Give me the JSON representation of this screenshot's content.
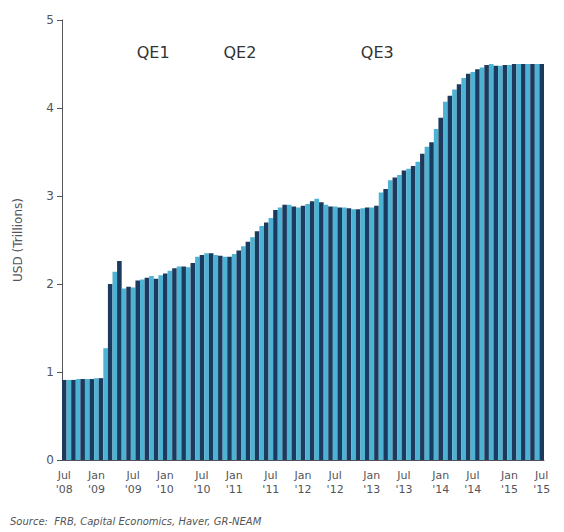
{
  "chart_data": {
    "type": "bar",
    "ylabel": "USD (Trillions)",
    "annotations": [
      "QE1",
      "QE2",
      "QE3"
    ],
    "source": "Source:  FRB, Capital Economics, Haver, GR-NEAM",
    "ylim": [
      0,
      5
    ],
    "yticks": [
      0,
      1,
      2,
      3,
      4,
      5
    ],
    "grid": false,
    "categories": [
      "Jul\n'08",
      null,
      null,
      null,
      null,
      null,
      null,
      "Jan\n'09",
      null,
      null,
      null,
      null,
      null,
      null,
      null,
      "Jul\n'09",
      null,
      null,
      null,
      null,
      null,
      null,
      "Jan\n'10",
      null,
      null,
      null,
      null,
      null,
      null,
      null,
      "Jul\n'10",
      null,
      null,
      null,
      null,
      null,
      null,
      "Jan\n'11",
      null,
      null,
      null,
      null,
      null,
      null,
      null,
      "Jul\n'11",
      null,
      null,
      null,
      null,
      null,
      null,
      "Jan\n'12",
      null,
      null,
      null,
      null,
      null,
      null,
      "Jul\n'12",
      null,
      null,
      null,
      null,
      null,
      null,
      null,
      "Jan\n'13",
      null,
      null,
      null,
      null,
      null,
      null,
      "Jul\n'13",
      null,
      null,
      null,
      null,
      null,
      null,
      null,
      "Jan\n'14",
      null,
      null,
      null,
      null,
      null,
      null,
      "Jul\n'14",
      null,
      null,
      null,
      null,
      null,
      null,
      null,
      "Jan\n'15",
      null,
      null,
      null,
      null,
      null,
      null,
      "Jul\n'15"
    ],
    "values": [
      0.91,
      0.91,
      0.91,
      0.92,
      0.92,
      0.92,
      0.92,
      0.93,
      0.93,
      1.27,
      2.0,
      2.14,
      2.26,
      1.95,
      1.97,
      1.96,
      2.04,
      2.05,
      2.07,
      2.09,
      2.06,
      2.1,
      2.12,
      2.15,
      2.18,
      2.2,
      2.2,
      2.19,
      2.24,
      2.31,
      2.33,
      2.35,
      2.35,
      2.33,
      2.32,
      2.31,
      2.31,
      2.34,
      2.38,
      2.43,
      2.48,
      2.53,
      2.6,
      2.66,
      2.7,
      2.75,
      2.84,
      2.87,
      2.9,
      2.9,
      2.88,
      2.87,
      2.89,
      2.91,
      2.94,
      2.97,
      2.93,
      2.9,
      2.88,
      2.88,
      2.87,
      2.87,
      2.86,
      2.85,
      2.85,
      2.86,
      2.87,
      2.87,
      2.89,
      3.04,
      3.08,
      3.18,
      3.21,
      3.24,
      3.29,
      3.31,
      3.34,
      3.39,
      3.48,
      3.56,
      3.61,
      3.76,
      3.89,
      4.07,
      4.14,
      4.21,
      4.27,
      4.34,
      4.39,
      4.41,
      4.44,
      4.46,
      4.49,
      4.5,
      4.48,
      4.48,
      4.49,
      4.49,
      4.5,
      4.5,
      4.5,
      4.5,
      4.5,
      4.5,
      4.5
    ],
    "colors": [
      "#1b3a5e",
      "#4db3d4",
      "#1b3a5e",
      "#4db3d4",
      "#1b3a5e",
      "#4db3d4",
      "#1b3a5e",
      "#4db3d4",
      "#1b3a5e",
      "#4db3d4",
      "#1b3a5e",
      "#4db3d4",
      "#1b3a5e",
      "#4db3d4",
      "#1b3a5e",
      "#4db3d4",
      "#1b3a5e",
      "#4db3d4",
      "#1b3a5e",
      "#4db3d4",
      "#1b3a5e",
      "#4db3d4",
      "#1b3a5e",
      "#4db3d4",
      "#1b3a5e",
      "#4db3d4",
      "#1b3a5e",
      "#4db3d4",
      "#1b3a5e",
      "#4db3d4",
      "#1b3a5e",
      "#4db3d4",
      "#1b3a5e",
      "#4db3d4",
      "#1b3a5e",
      "#4db3d4",
      "#1b3a5e",
      "#4db3d4",
      "#1b3a5e",
      "#4db3d4",
      "#1b3a5e",
      "#4db3d4",
      "#1b3a5e",
      "#4db3d4",
      "#1b3a5e",
      "#4db3d4",
      "#1b3a5e",
      "#4db3d4",
      "#1b3a5e",
      "#4db3d4",
      "#1b3a5e",
      "#4db3d4",
      "#1b3a5e",
      "#4db3d4",
      "#1b3a5e",
      "#4db3d4",
      "#1b3a5e",
      "#4db3d4",
      "#1b3a5e",
      "#4db3d4",
      "#1b3a5e",
      "#4db3d4",
      "#1b3a5e",
      "#4db3d4",
      "#1b3a5e",
      "#4db3d4",
      "#1b3a5e",
      "#4db3d4",
      "#1b3a5e",
      "#4db3d4",
      "#1b3a5e",
      "#4db3d4",
      "#1b3a5e",
      "#4db3d4",
      "#1b3a5e",
      "#4db3d4",
      "#1b3a5e",
      "#4db3d4",
      "#1b3a5e",
      "#4db3d4",
      "#1b3a5e",
      "#4db3d4",
      "#1b3a5e",
      "#4db3d4",
      "#1b3a5e",
      "#4db3d4",
      "#1b3a5e",
      "#4db3d4",
      "#1b3a5e",
      "#4db3d4",
      "#1b3a5e",
      "#4db3d4",
      "#1b3a5e",
      "#4db3d4",
      "#1b3a5e",
      "#4db3d4",
      "#1b3a5e",
      "#4db3d4",
      "#1b3a5e",
      "#4db3d4",
      "#1b3a5e",
      "#4db3d4",
      "#1b3a5e",
      "#4db3d4",
      "#1b3a5e"
    ]
  }
}
